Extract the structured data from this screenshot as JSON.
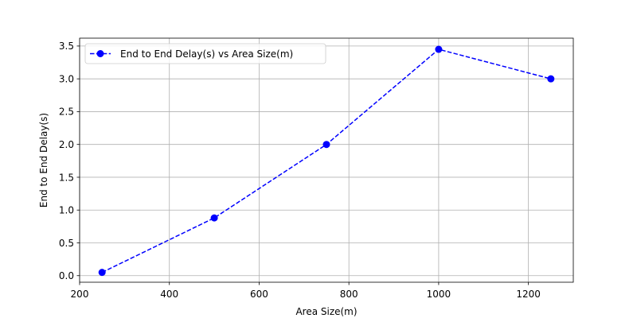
{
  "chart_data": {
    "type": "line",
    "x": [
      250,
      500,
      750,
      1000,
      1250
    ],
    "series": [
      {
        "name": "End to End Delay(s) vs Area Size(m)",
        "values": [
          0.05,
          0.88,
          2.0,
          3.45,
          3.0
        ],
        "color": "#0000ff",
        "line_style": "dashed",
        "marker": "circle"
      }
    ],
    "xlabel": "Area Size(m)",
    "ylabel": "End to End Delay(s)",
    "xlim": [
      200,
      1300
    ],
    "ylim": [
      -0.1,
      3.62
    ],
    "xticks": [
      "200",
      "400",
      "600",
      "800",
      "1000",
      "1200"
    ],
    "yticks": [
      "0.0",
      "0.5",
      "1.0",
      "1.5",
      "2.0",
      "2.5",
      "3.0",
      "3.5"
    ],
    "grid": true,
    "legend_position": "top-left"
  }
}
